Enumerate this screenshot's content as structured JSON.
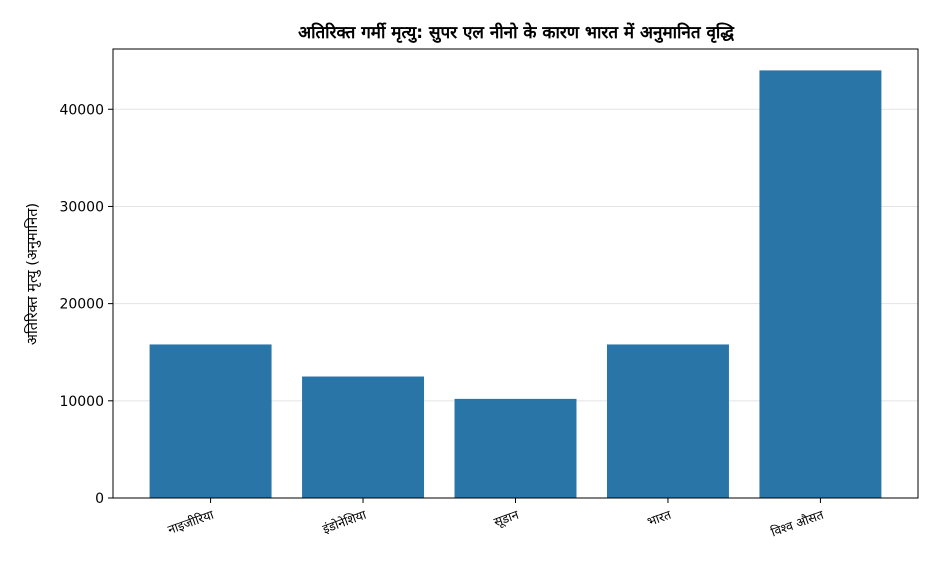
{
  "chart_data": {
    "type": "bar",
    "title": "अतिरिक्त गर्मी मृत्यु: सुपर एल नीनो के कारण भारत में अनुमानित वृद्धि",
    "xlabel": "",
    "ylabel": "अतिरिक्त मृत्यु (अनुमानित)",
    "categories": [
      "नाइजीरिया",
      "इंडोनेशिया",
      "सूडान",
      "भारत",
      "विश्व औसत"
    ],
    "values": [
      15800,
      12500,
      10200,
      15800,
      44000
    ],
    "ylim": [
      0,
      46200
    ],
    "yticks": [
      0,
      10000,
      20000,
      30000,
      40000
    ],
    "grid": "y",
    "bar_color": "#2a75a8",
    "legend": "none"
  }
}
